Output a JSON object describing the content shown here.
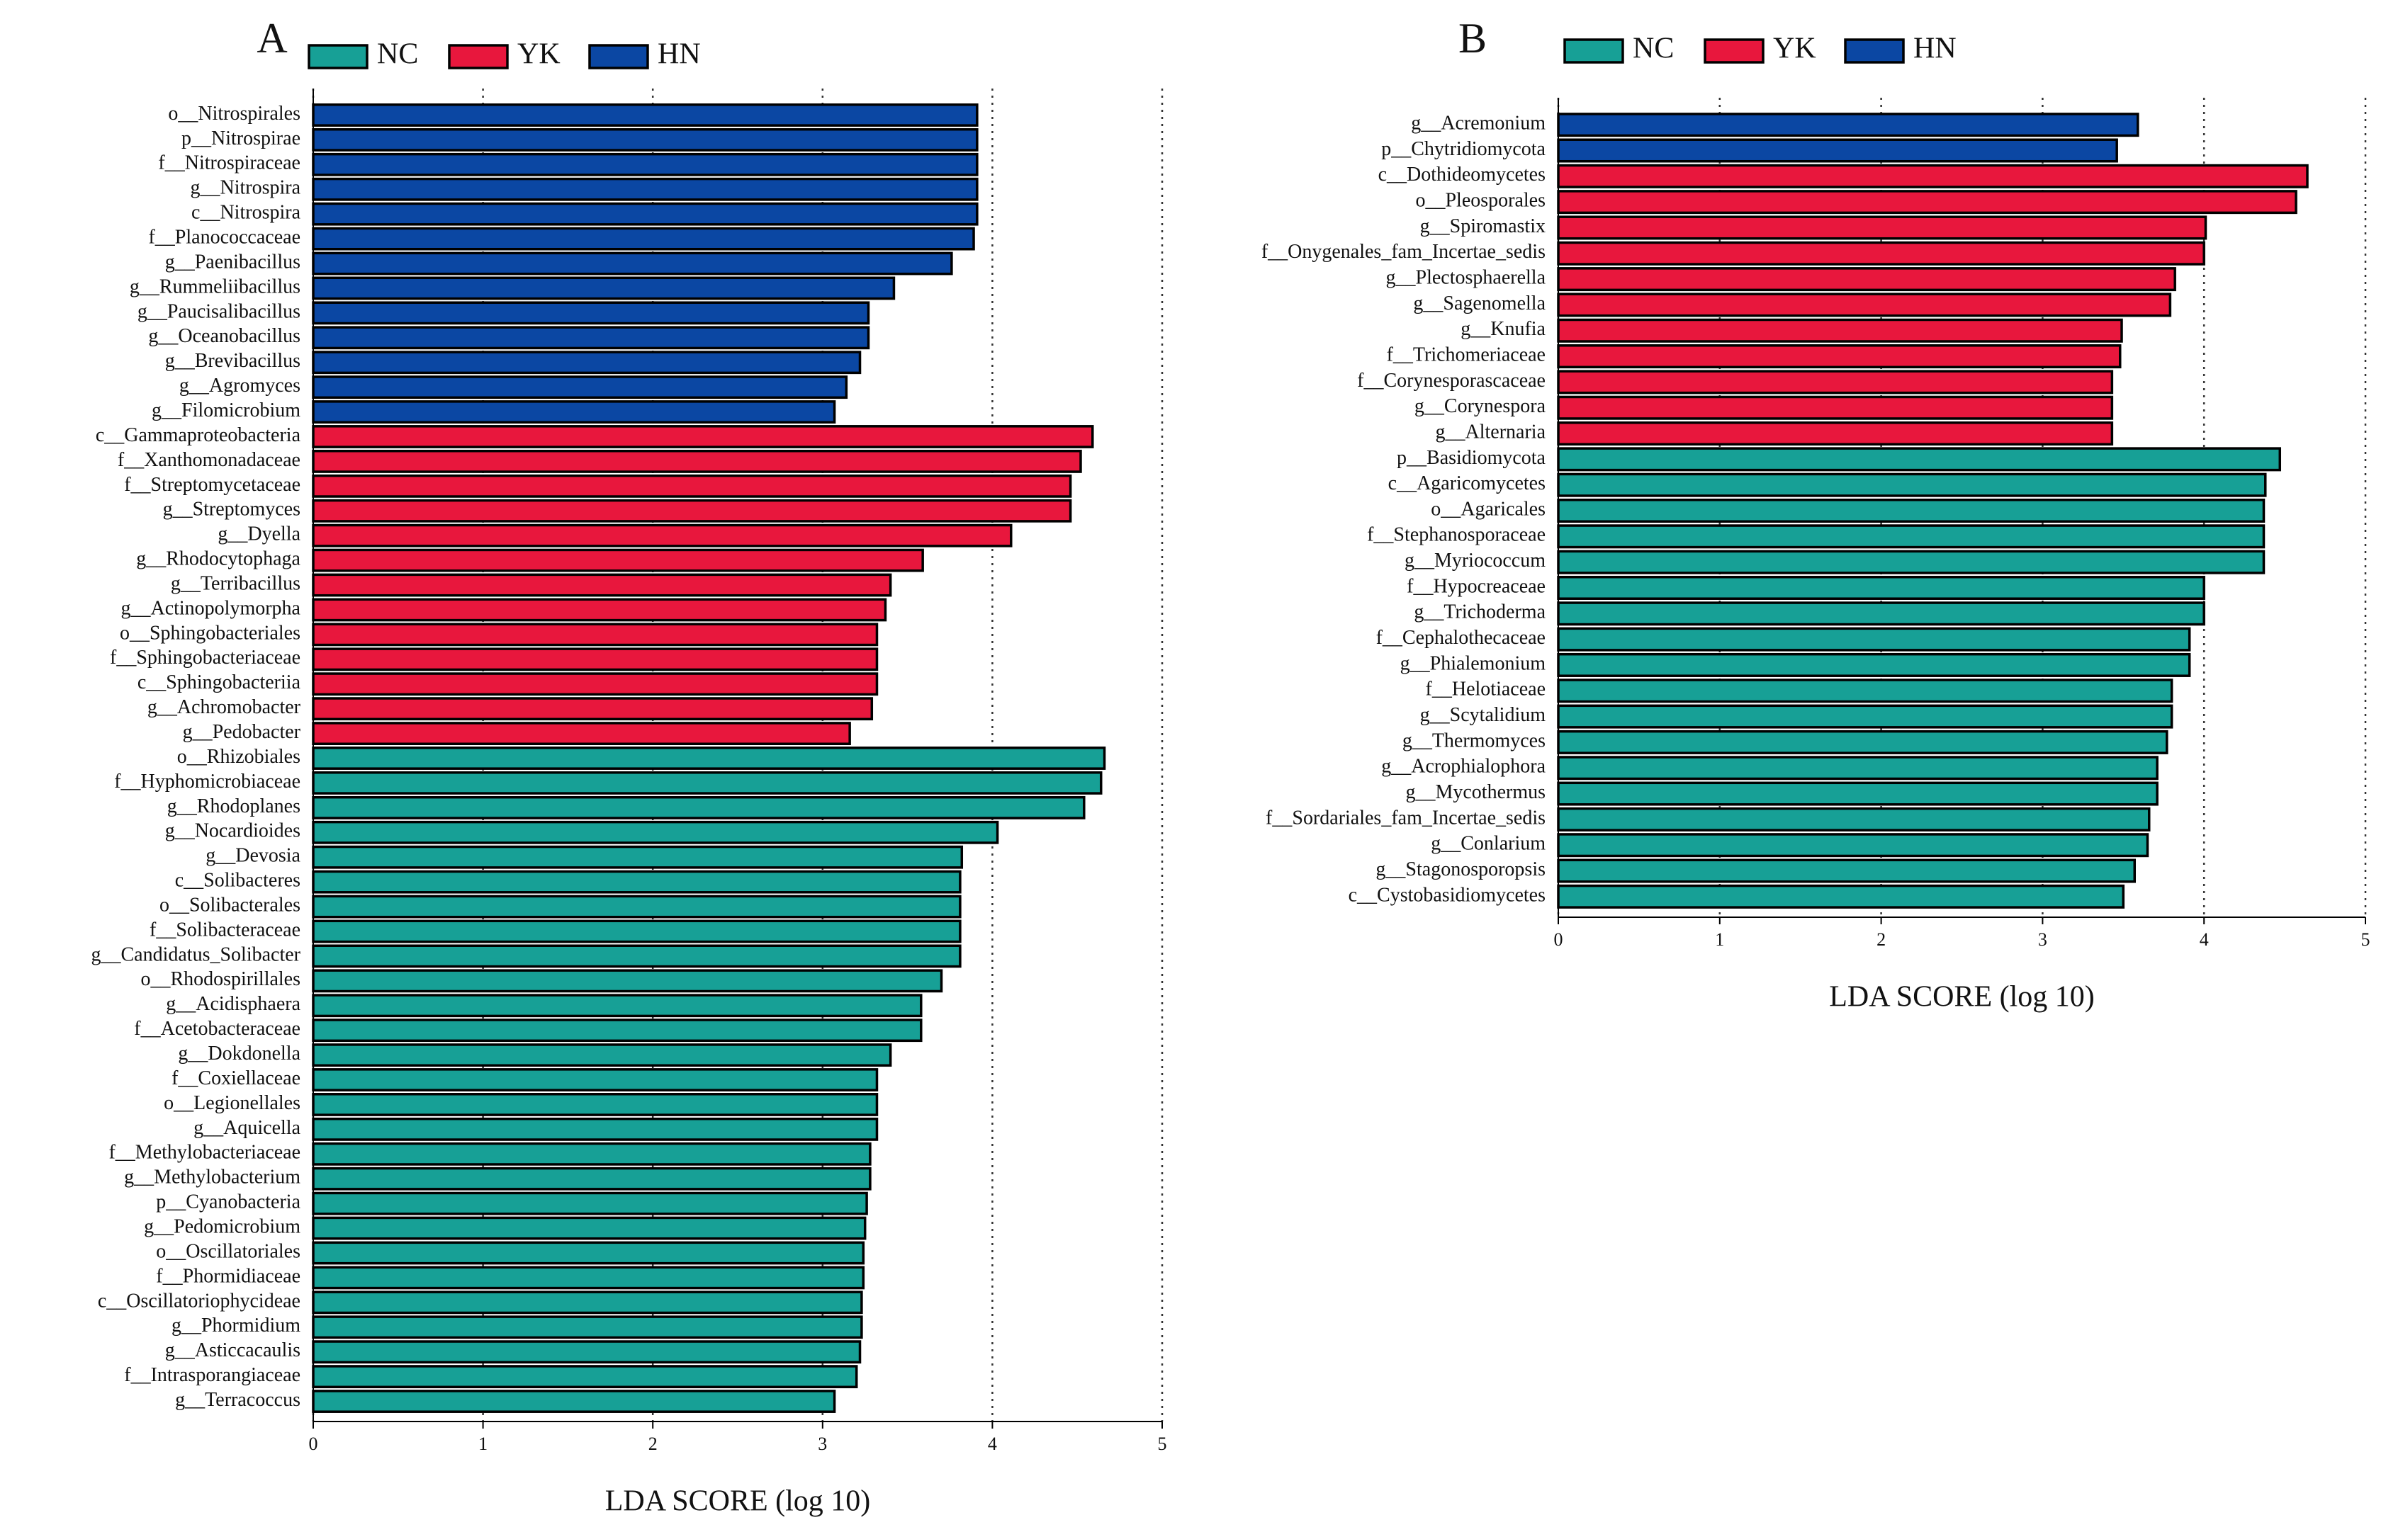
{
  "chart_data": [
    {
      "type": "barh",
      "title": "A",
      "xlabel": "LDA SCORE (log 10)",
      "categories": [
        "o__Nitrospirales",
        "p__Nitrospirae",
        "f__Nitrospiraceae",
        "g__Nitrospira",
        "c__Nitrospira",
        "f__Planococcaceae",
        "g__Paenibacillus",
        "g__Rummeliibacillus",
        "g__Paucisalibacillus",
        "g__Oceanobacillus",
        "g__Brevibacillus",
        "g__Agromyces",
        "g__Filomicrobium",
        "c__Gammaproteobacteria",
        "f__Xanthomonadaceae",
        "f__Streptomycetaceae",
        "g__Streptomyces",
        "g__Dyella",
        "g__Rhodocytophaga",
        "g__Terribacillus",
        "g__Actinopolymorpha",
        "o__Sphingobacteriales",
        "f__Sphingobacteriaceae",
        "c__Sphingobacteriia",
        "g__Achromobacter",
        "g__Pedobacter",
        "o__Rhizobiales",
        "f__Hyphomicrobiaceae",
        "g__Rhodoplanes",
        "g__Nocardioides",
        "g__Devosia",
        "c__Solibacteres",
        "o__Solibacterales",
        "f__Solibacteraceae",
        "g__Candidatus_Solibacter",
        "o__Rhodospirillales",
        "g__Acidisphaera",
        "f__Acetobacteraceae",
        "g__Dokdonella",
        "f__Coxiellaceae",
        "o__Legionellales",
        "g__Aquicella",
        "f__Methylobacteriaceae",
        "g__Methylobacterium",
        "p__Cyanobacteria",
        "g__Pedomicrobium",
        "o__Oscillatoriales",
        "f__Phormidiaceae",
        "c__Oscillatoriophycideae",
        "g__Phormidium",
        "g__Asticcacaulis",
        "f__Intrasporangiaceae",
        "g__Terracoccus"
      ],
      "series": [
        {
          "name": "NC",
          "color": "#17a096",
          "values": [
            null,
            null,
            null,
            null,
            null,
            null,
            null,
            null,
            null,
            null,
            null,
            null,
            null,
            null,
            null,
            null,
            null,
            null,
            null,
            null,
            null,
            null,
            null,
            null,
            null,
            null,
            4.66,
            4.64,
            4.54,
            4.03,
            3.82,
            3.81,
            3.81,
            3.81,
            3.81,
            3.7,
            3.58,
            3.58,
            3.4,
            3.32,
            3.32,
            3.32,
            3.28,
            3.28,
            3.26,
            3.25,
            3.24,
            3.24,
            3.23,
            3.23,
            3.22,
            3.2,
            3.07
          ]
        },
        {
          "name": "YK",
          "color": "#e8173d",
          "values": [
            null,
            null,
            null,
            null,
            null,
            null,
            null,
            null,
            null,
            null,
            null,
            null,
            null,
            4.59,
            4.52,
            4.46,
            4.46,
            4.11,
            3.59,
            3.4,
            3.37,
            3.32,
            3.32,
            3.32,
            3.29,
            3.16,
            null,
            null,
            null,
            null,
            null,
            null,
            null,
            null,
            null,
            null,
            null,
            null,
            null,
            null,
            null,
            null,
            null,
            null,
            null,
            null,
            null,
            null,
            null,
            null,
            null,
            null,
            null
          ]
        },
        {
          "name": "HN",
          "color": "#0b47a3",
          "values": [
            3.91,
            3.91,
            3.91,
            3.91,
            3.91,
            3.89,
            3.76,
            3.42,
            3.27,
            3.27,
            3.22,
            3.14,
            3.07,
            null,
            null,
            null,
            null,
            null,
            null,
            null,
            null,
            null,
            null,
            null,
            null,
            null,
            null,
            null,
            null,
            null,
            null,
            null,
            null,
            null,
            null,
            null,
            null,
            null,
            null,
            null,
            null,
            null,
            null,
            null,
            null,
            null,
            null,
            null,
            null,
            null,
            null,
            null,
            null
          ]
        }
      ],
      "xlim": [
        0,
        5
      ],
      "xticks": [
        0,
        1,
        2,
        3,
        4,
        5
      ],
      "grid": true
    },
    {
      "type": "barh",
      "title": "B",
      "xlabel": "LDA SCORE (log 10)",
      "categories": [
        "g__Acremonium",
        "p__Chytridiomycota",
        "c__Dothideomycetes",
        "o__Pleosporales",
        "g__Spiromastix",
        "f__Onygenales_fam_Incertae_sedis",
        "g__Plectosphaerella",
        "g__Sagenomella",
        "g__Knufia",
        "f__Trichomeriaceae",
        "f__Corynesporascaceae",
        "g__Corynespora",
        "g__Alternaria",
        "p__Basidiomycota",
        "c__Agaricomycetes",
        "o__Agaricales",
        "f__Stephanosporaceae",
        "g__Myriococcum",
        "f__Hypocreaceae",
        "g__Trichoderma",
        "f__Cephalothecaceae",
        "g__Phialemonium",
        "f__Helotiaceae",
        "g__Scytalidium",
        "g__Thermomyces",
        "g__Acrophialophora",
        "g__Mycothermus",
        "f__Sordariales_fam_Incertae_sedis",
        "g__Conlarium",
        "g__Stagonosporopsis",
        "c__Cystobasidiomycetes"
      ],
      "series": [
        {
          "name": "NC",
          "color": "#17a096",
          "values": [
            null,
            null,
            null,
            null,
            null,
            null,
            null,
            null,
            null,
            null,
            null,
            null,
            null,
            4.47,
            4.38,
            4.37,
            4.37,
            4.37,
            4.0,
            4.0,
            3.91,
            3.91,
            3.8,
            3.8,
            3.77,
            3.71,
            3.71,
            3.66,
            3.65,
            3.57,
            3.5
          ]
        },
        {
          "name": "YK",
          "color": "#e8173d",
          "values": [
            null,
            null,
            4.64,
            4.57,
            4.01,
            4.0,
            3.82,
            3.79,
            3.49,
            3.48,
            3.43,
            3.43,
            3.43,
            null,
            null,
            null,
            null,
            null,
            null,
            null,
            null,
            null,
            null,
            null,
            null,
            null,
            null,
            null,
            null,
            null,
            null
          ]
        },
        {
          "name": "HN",
          "color": "#0b47a3",
          "values": [
            3.59,
            3.46,
            null,
            null,
            null,
            null,
            null,
            null,
            null,
            null,
            null,
            null,
            null,
            null,
            null,
            null,
            null,
            null,
            null,
            null,
            null,
            null,
            null,
            null,
            null,
            null,
            null,
            null,
            null,
            null,
            null
          ]
        }
      ],
      "xlim": [
        0,
        5
      ],
      "xticks": [
        0,
        1,
        2,
        3,
        4,
        5
      ],
      "grid": true
    }
  ]
}
